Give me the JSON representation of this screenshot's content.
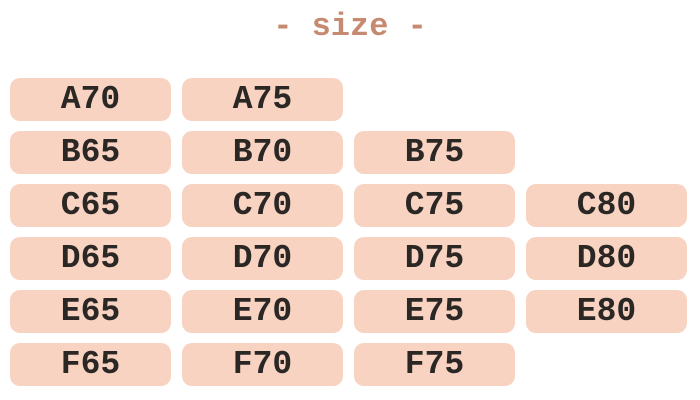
{
  "title": "- size -",
  "colors": {
    "page_bg": "#ffffff",
    "accent": "#c58a70",
    "button_bg": "#f8d3c1",
    "button_text": "#2a2725"
  },
  "size_grid": {
    "rows": [
      [
        "A70",
        "A75"
      ],
      [
        "B65",
        "B70",
        "B75"
      ],
      [
        "C65",
        "C70",
        "C75",
        "C80"
      ],
      [
        "D65",
        "D70",
        "D75",
        "D80"
      ],
      [
        "E65",
        "E70",
        "E75",
        "E80"
      ],
      [
        "F65",
        "F70",
        "F75"
      ]
    ]
  }
}
